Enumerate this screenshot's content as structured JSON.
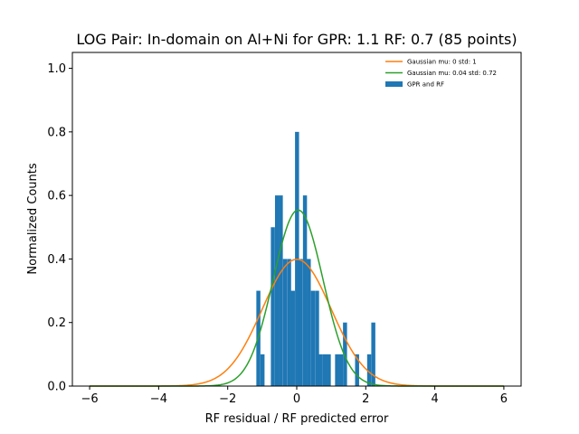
{
  "chart_data": {
    "type": "bar",
    "title": "LOG Pair: In-domain on Al+Ni for GPR: 1.1 RF: 0.7 (85 points)",
    "xlabel": "RF residual / RF predicted error",
    "ylabel": "Normalized Counts",
    "xlim": [
      -6.5,
      6.5
    ],
    "ylim": [
      0,
      1.05
    ],
    "xticks": [
      "−6",
      "−4",
      "−2",
      "0",
      "2",
      "4",
      "6"
    ],
    "xtick_values": [
      -6,
      -4,
      -2,
      0,
      2,
      4,
      6
    ],
    "yticks": [
      "0.0",
      "0.2",
      "0.4",
      "0.6",
      "0.8",
      "1.0"
    ],
    "ytick_values": [
      0.0,
      0.2,
      0.4,
      0.6,
      0.8,
      1.0
    ],
    "histogram": {
      "name": "GPR and RF",
      "color": "#1f77b4",
      "bin_width": 0.117,
      "bins": [
        {
          "x": -1.17,
          "y": 0.3
        },
        {
          "x": -1.05,
          "y": 0.1
        },
        {
          "x": -0.75,
          "y": 0.5
        },
        {
          "x": -0.63,
          "y": 0.6
        },
        {
          "x": -0.52,
          "y": 0.6
        },
        {
          "x": -0.4,
          "y": 0.4
        },
        {
          "x": -0.28,
          "y": 0.4
        },
        {
          "x": -0.17,
          "y": 0.3
        },
        {
          "x": -0.05,
          "y": 0.8
        },
        {
          "x": 0.06,
          "y": 0.4
        },
        {
          "x": 0.18,
          "y": 0.6
        },
        {
          "x": 0.29,
          "y": 0.4
        },
        {
          "x": 0.41,
          "y": 0.3
        },
        {
          "x": 0.53,
          "y": 0.3
        },
        {
          "x": 0.64,
          "y": 0.1
        },
        {
          "x": 0.76,
          "y": 0.1
        },
        {
          "x": 0.87,
          "y": 0.1
        },
        {
          "x": 1.11,
          "y": 0.1
        },
        {
          "x": 1.22,
          "y": 0.1
        },
        {
          "x": 1.34,
          "y": 0.2
        },
        {
          "x": 1.69,
          "y": 0.1
        },
        {
          "x": 2.04,
          "y": 0.1
        },
        {
          "x": 2.16,
          "y": 0.2
        }
      ]
    },
    "series": [
      {
        "name": "Gaussian mu: 0 std: 1",
        "type": "line",
        "mu": 0,
        "std": 1,
        "color": "#ff7f0e"
      },
      {
        "name": "Gaussian mu: 0.04 std: 0.72",
        "type": "line",
        "mu": 0.04,
        "std": 0.72,
        "color": "#2ca02c"
      }
    ],
    "legend": "top-right",
    "grid": false
  }
}
